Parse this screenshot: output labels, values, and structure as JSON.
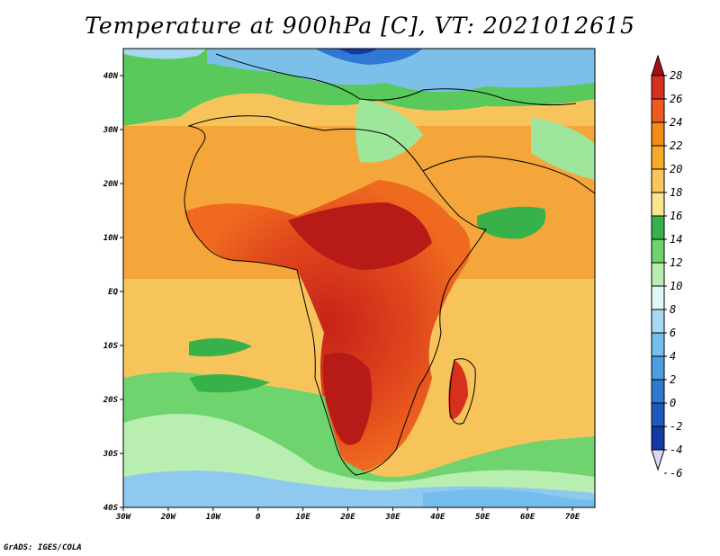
{
  "title": "Temperature at 900hPa [C], VT: 2021012615",
  "footer": "GrADS: IGES/COLA",
  "map": {
    "lon_labels": [
      "30W",
      "20W",
      "10W",
      "0",
      "10E",
      "20E",
      "30E",
      "40E",
      "50E",
      "60E",
      "70E"
    ],
    "lat_labels": [
      "40N",
      "30N",
      "20N",
      "10N",
      "EQ",
      "10S",
      "20S",
      "30S",
      "40S"
    ],
    "lon_range": [
      -30,
      75
    ],
    "lat_range": [
      -40,
      45
    ]
  },
  "colorbar": {
    "levels": [
      "28",
      "26",
      "24",
      "22",
      "20",
      "18",
      "16",
      "14",
      "12",
      "10",
      "8",
      "6",
      "4",
      "2",
      "0",
      "-2",
      "-4",
      "-6"
    ],
    "colors": [
      "#a50f15",
      "#d7301f",
      "#ef5a1e",
      "#f48a17",
      "#f7a928",
      "#f8c65a",
      "#fbe58f",
      "#37b24a",
      "#6fd46e",
      "#b8eeb0",
      "#dff7f5",
      "#a6d8f2",
      "#74bdec",
      "#4c9ce0",
      "#2f79d2",
      "#1f58bf",
      "#1438a4",
      "#0b1c7a"
    ],
    "unit": "C"
  }
}
